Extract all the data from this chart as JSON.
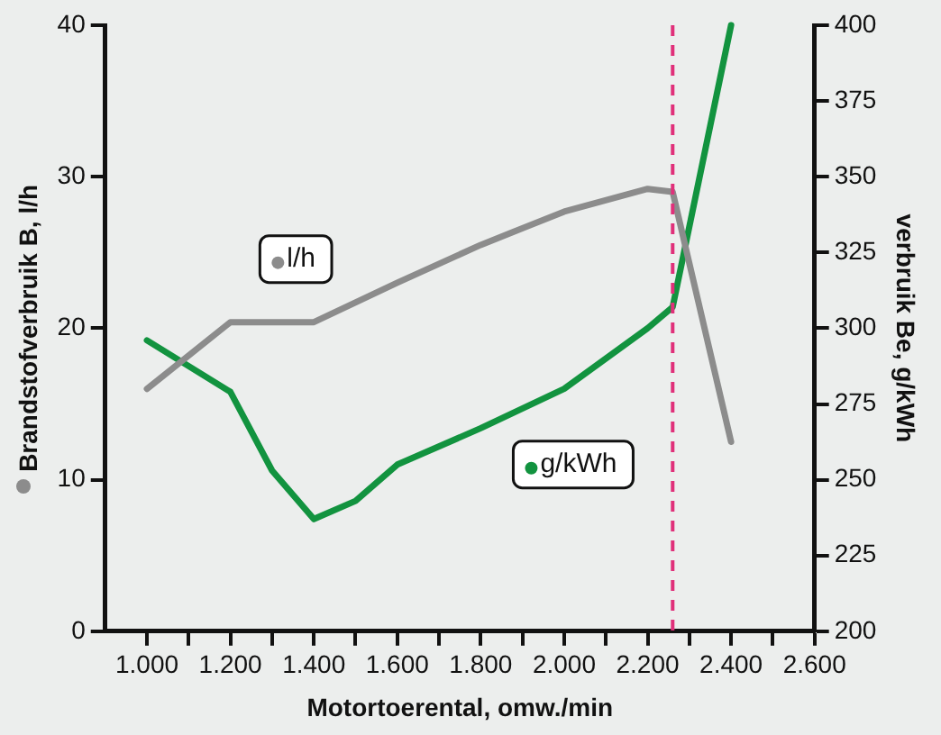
{
  "chart_data": {
    "type": "line",
    "xlabel": "Motortoerental, omw./min",
    "ylabel": "Brandstofverbruik B, l/h",
    "y2label": "verbruik Be, g/kWh",
    "xlim": [
      900,
      2600
    ],
    "xticks": [
      {
        "value": 1000,
        "label": "1.000"
      },
      {
        "value": 1100,
        "label": null
      },
      {
        "value": 1200,
        "label": "1.200"
      },
      {
        "value": 1300,
        "label": null
      },
      {
        "value": 1400,
        "label": "1.400"
      },
      {
        "value": 1500,
        "label": null
      },
      {
        "value": 1600,
        "label": "1.600"
      },
      {
        "value": 1700,
        "label": null
      },
      {
        "value": 1800,
        "label": "1.800"
      },
      {
        "value": 1900,
        "label": null
      },
      {
        "value": 2000,
        "label": "2.000"
      },
      {
        "value": 2100,
        "label": null
      },
      {
        "value": 2200,
        "label": "2.200"
      },
      {
        "value": 2300,
        "label": null
      },
      {
        "value": 2400,
        "label": "2.400"
      },
      {
        "value": 2500,
        "label": null
      },
      {
        "value": 2600,
        "label": "2.600"
      }
    ],
    "ylim": [
      0,
      40
    ],
    "yticks": [
      0,
      10,
      20,
      30,
      40
    ],
    "y2lim": [
      200,
      400
    ],
    "y2ticks": [
      200,
      225,
      250,
      275,
      300,
      325,
      350,
      375,
      400
    ],
    "series": [
      {
        "name": "l/h",
        "color": "#8c8c8c",
        "x": [
          1000,
          1200,
          1400,
          1600,
          1800,
          2000,
          2200,
          2260,
          2400
        ],
        "values": [
          16.0,
          20.4,
          20.4,
          23.0,
          25.5,
          27.7,
          29.2,
          29.0,
          12.5
        ]
      },
      {
        "name": "g/kWh",
        "color": "#12933f",
        "axis": "y2",
        "x": [
          1000,
          1200,
          1300,
          1400,
          1500,
          1600,
          1800,
          2000,
          2200,
          2260,
          2400
        ],
        "values": [
          296,
          279,
          253,
          237,
          243,
          255,
          267,
          280,
          300,
          307,
          400
        ]
      }
    ],
    "ref_lines": [
      {
        "axis": "x",
        "value": 2260,
        "label": null,
        "color": "#e0307a",
        "line_style": "dashed"
      }
    ],
    "grid": false,
    "legend": "bottom left",
    "marker": "none",
    "line_style": "solid"
  }
}
